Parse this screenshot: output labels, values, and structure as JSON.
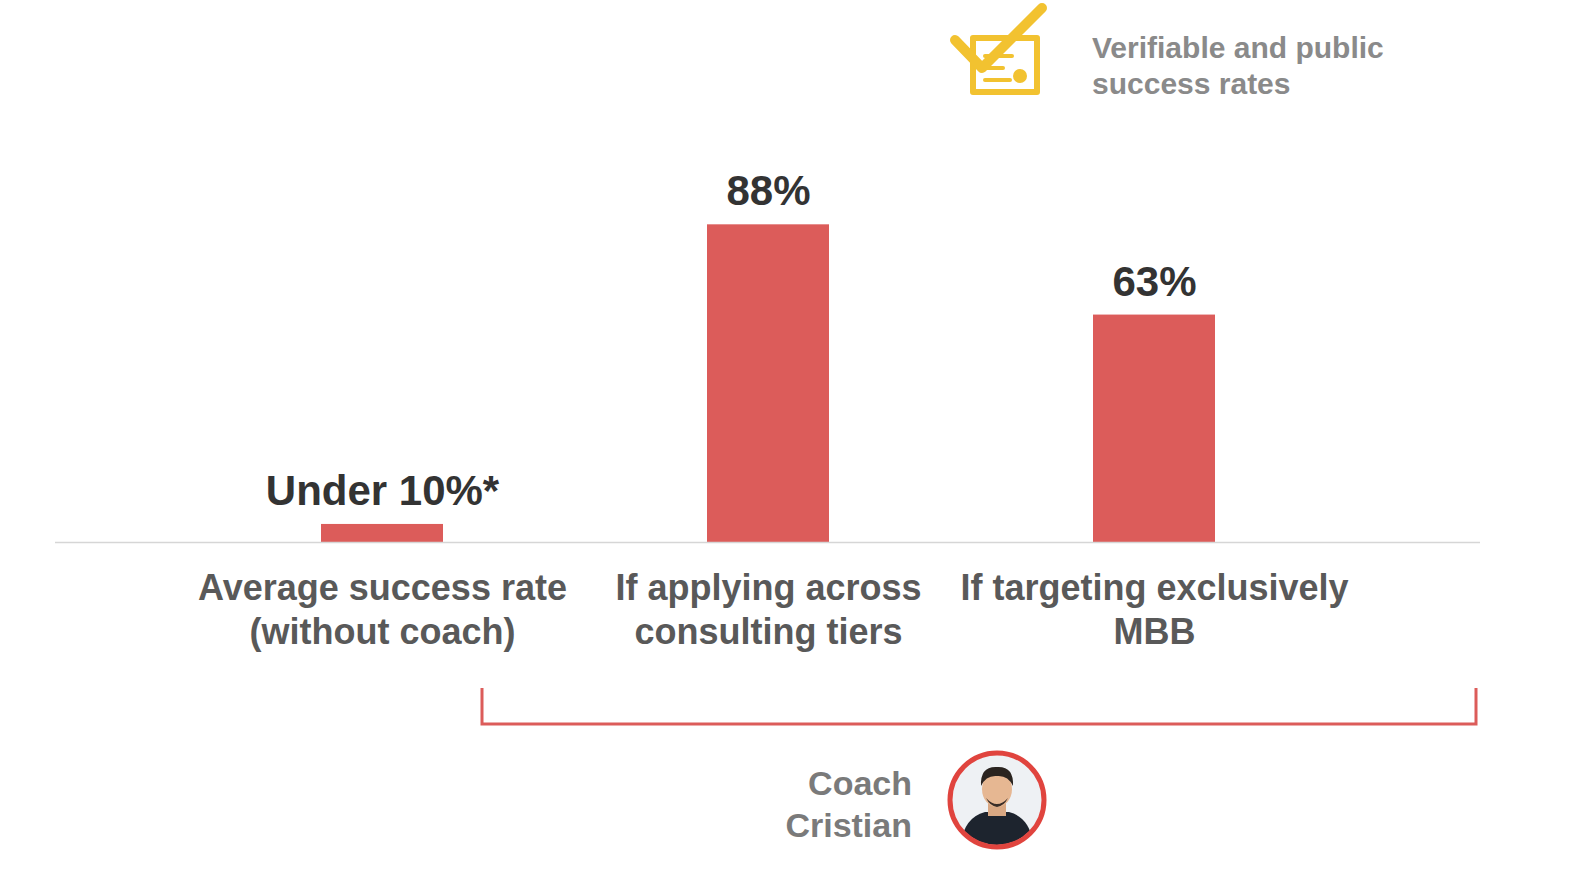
{
  "chart_data": {
    "type": "bar",
    "categories": [
      "Average success rate (without coach)",
      "If applying across consulting tiers",
      "If targeting exclusively MBB"
    ],
    "values": [
      5,
      88,
      63
    ],
    "value_labels": [
      "Under 10%*",
      "88%",
      "63%"
    ],
    "color": "#dc5c5a",
    "ylim": [
      0,
      100
    ],
    "grid": false,
    "data_labels": true,
    "tick_labels": "x",
    "annotations": {
      "badge": "Verifiable and public success rates",
      "bracket": "Coach Cristian"
    }
  }
}
